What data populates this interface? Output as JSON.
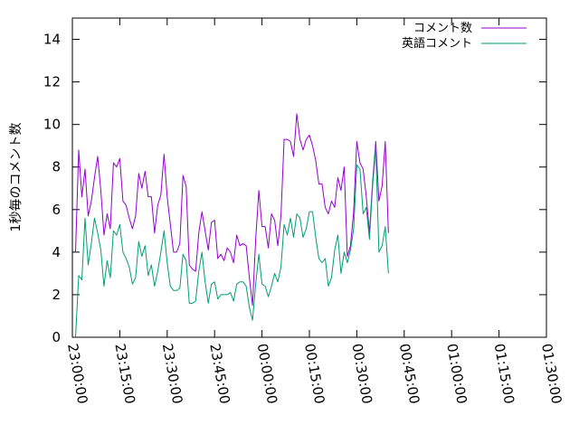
{
  "chart_data": {
    "type": "line",
    "ylabel": "1秒毎のコメント数",
    "xlabel": "",
    "ylim": [
      0,
      15
    ],
    "yticks": [
      0,
      2,
      4,
      6,
      8,
      10,
      12,
      14
    ],
    "xlim": [
      "23:00:00",
      "01:30:00"
    ],
    "xtick_labels": [
      "23:00:00",
      "23:15:00",
      "23:30:00",
      "23:45:00",
      "00:00:00",
      "00:15:00",
      "00:30:00",
      "00:45:00",
      "01:00:00",
      "01:15:00",
      "01:30:00"
    ],
    "grid": false,
    "legend_position": "top-right",
    "sample_interval": "1 minute",
    "x_start": "23:01:00",
    "series": [
      {
        "name": "コメント数",
        "color": "#9400d3",
        "values": [
          4.0,
          8.8,
          6.6,
          7.9,
          5.7,
          6.4,
          7.5,
          8.5,
          6.9,
          4.8,
          5.8,
          5.1,
          8.2,
          8.0,
          8.4,
          6.4,
          6.2,
          5.6,
          5.1,
          5.7,
          7.7,
          7.0,
          7.8,
          6.6,
          6.6,
          4.9,
          6.2,
          6.7,
          8.6,
          6.6,
          5.3,
          4.0,
          4.0,
          4.4,
          7.6,
          7.1,
          3.4,
          3.2,
          3.1,
          4.9,
          5.9,
          5.0,
          4.1,
          5.4,
          5.5,
          3.7,
          3.9,
          3.6,
          4.2,
          4.0,
          3.5,
          4.8,
          4.3,
          4.4,
          4.3,
          2.8,
          1.5,
          4.6,
          6.9,
          5.2,
          5.2,
          4.2,
          5.8,
          5.5,
          4.3,
          5.7,
          9.3,
          9.3,
          9.2,
          8.5,
          10.5,
          9.3,
          8.8,
          9.3,
          9.5,
          9.0,
          8.3,
          7.2,
          7.2,
          6.1,
          5.8,
          6.4,
          6.1,
          7.5,
          6.9,
          8.0,
          3.8,
          4.3,
          5.9,
          9.2,
          8.2,
          7.9,
          6.6,
          4.9,
          7.3,
          9.2,
          6.4,
          7.1,
          9.2,
          4.9
        ]
      },
      {
        "name": "英語コメント",
        "color": "#009e73",
        "values": [
          0.0,
          2.9,
          2.7,
          5.6,
          3.4,
          4.4,
          5.6,
          4.9,
          4.1,
          2.4,
          3.6,
          2.8,
          5.0,
          4.8,
          5.3,
          4.0,
          3.7,
          3.3,
          2.5,
          2.8,
          4.5,
          3.8,
          4.3,
          2.9,
          3.4,
          2.4,
          3.1,
          4.0,
          5.0,
          3.5,
          2.4,
          2.2,
          2.2,
          2.3,
          3.9,
          3.6,
          1.6,
          1.6,
          1.7,
          3.1,
          4.0,
          2.6,
          1.6,
          2.5,
          2.6,
          1.8,
          2.0,
          2.0,
          2.0,
          2.1,
          1.7,
          2.5,
          2.6,
          2.6,
          2.4,
          1.4,
          0.8,
          2.5,
          3.9,
          2.5,
          2.4,
          1.9,
          2.4,
          3.0,
          2.6,
          3.3,
          5.3,
          4.8,
          5.6,
          4.7,
          5.8,
          5.6,
          4.7,
          5.1,
          5.9,
          5.9,
          4.7,
          3.7,
          3.5,
          3.7,
          2.4,
          2.8,
          4.1,
          4.8,
          3.0,
          4.0,
          3.5,
          4.1,
          5.1,
          8.1,
          7.9,
          5.8,
          6.1,
          4.6,
          7.1,
          8.9,
          4.0,
          4.3,
          5.2,
          3.0
        ]
      }
    ]
  }
}
